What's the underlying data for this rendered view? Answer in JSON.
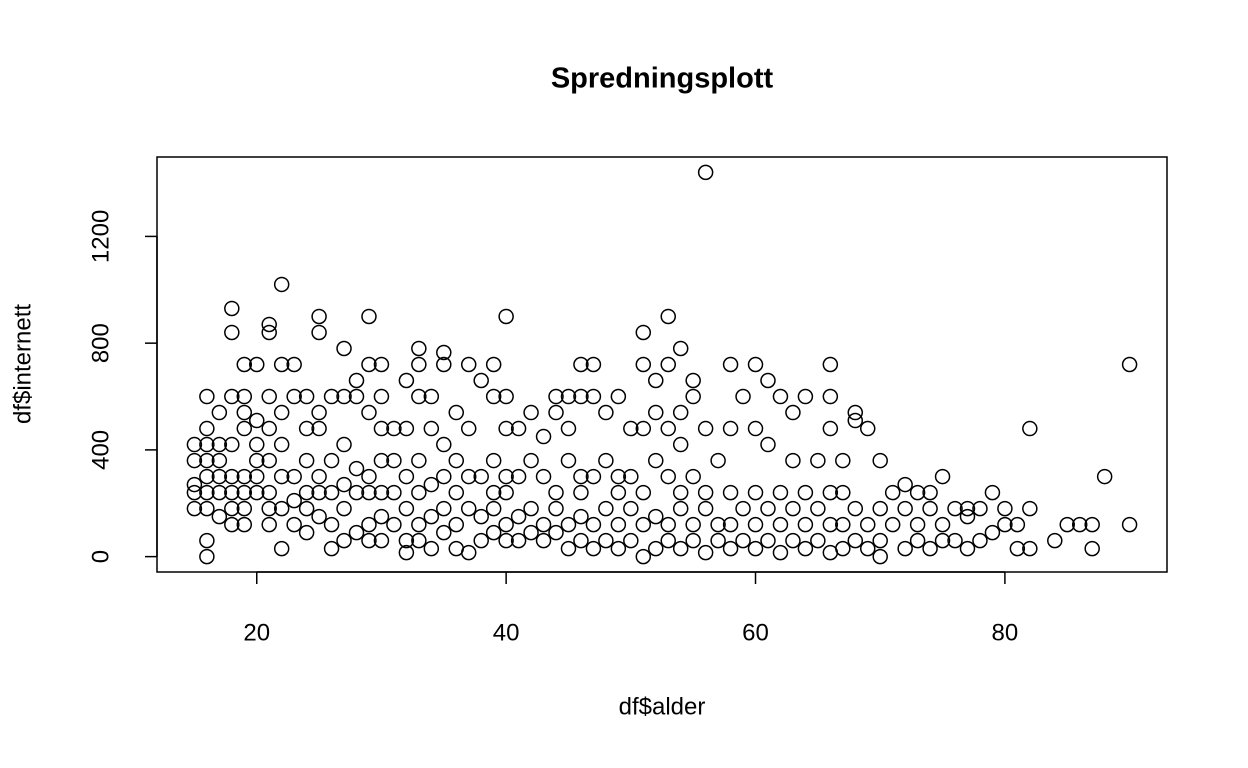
{
  "chart_data": {
    "type": "scatter",
    "title": "Spredningsplott",
    "x_label": "df$alder",
    "y_label": "df$internett",
    "xlim": [
      12,
      93
    ],
    "ylim": [
      -57.6,
      1497.6
    ],
    "xticks": [
      20,
      40,
      60,
      80
    ],
    "yticks": [
      0,
      400,
      800,
      1200
    ],
    "color": "#000000",
    "x": [
      15,
      15,
      15,
      15,
      15,
      16,
      16,
      16,
      16,
      16,
      16,
      16,
      16,
      16,
      17,
      17,
      17,
      17,
      17,
      17,
      18,
      18,
      18,
      18,
      18,
      18,
      18,
      18,
      19,
      19,
      19,
      19,
      19,
      19,
      19,
      19,
      20,
      20,
      20,
      20,
      20,
      20,
      21,
      21,
      21,
      21,
      21,
      21,
      21,
      21,
      22,
      22,
      22,
      22,
      22,
      22,
      22,
      23,
      23,
      23,
      23,
      23,
      24,
      24,
      24,
      24,
      24,
      24,
      25,
      25,
      25,
      25,
      25,
      25,
      25,
      26,
      26,
      26,
      26,
      26,
      27,
      27,
      27,
      27,
      27,
      27,
      28,
      28,
      28,
      28,
      28,
      29,
      29,
      29,
      29,
      29,
      29,
      29,
      30,
      30,
      30,
      30,
      30,
      30,
      30,
      31,
      31,
      31,
      31,
      32,
      32,
      32,
      32,
      32,
      32,
      33,
      33,
      33,
      33,
      33,
      33,
      33,
      34,
      34,
      34,
      34,
      34,
      35,
      35,
      35,
      35,
      35,
      35,
      36,
      36,
      36,
      36,
      36,
      37,
      37,
      37,
      37,
      37,
      38,
      38,
      38,
      38,
      39,
      39,
      39,
      39,
      39,
      39,
      40,
      40,
      40,
      40,
      40,
      40,
      40,
      41,
      41,
      41,
      41,
      42,
      42,
      42,
      42,
      43,
      43,
      43,
      43,
      44,
      44,
      44,
      44,
      44,
      45,
      45,
      45,
      45,
      45,
      46,
      46,
      46,
      46,
      46,
      46,
      47,
      47,
      47,
      47,
      47,
      48,
      48,
      48,
      48,
      49,
      49,
      49,
      49,
      49,
      50,
      50,
      50,
      50,
      51,
      51,
      51,
      51,
      51,
      51,
      52,
      52,
      52,
      52,
      52,
      53,
      53,
      53,
      53,
      53,
      53,
      54,
      54,
      54,
      54,
      54,
      54,
      55,
      55,
      55,
      55,
      55,
      56,
      56,
      56,
      56,
      56,
      57,
      57,
      57,
      58,
      58,
      58,
      58,
      58,
      59,
      59,
      59,
      60,
      60,
      60,
      60,
      60,
      61,
      61,
      61,
      61,
      62,
      62,
      62,
      62,
      63,
      63,
      63,
      63,
      64,
      64,
      64,
      64,
      65,
      65,
      65,
      66,
      66,
      66,
      66,
      66,
      66,
      67,
      67,
      67,
      67,
      68,
      68,
      68,
      68,
      69,
      69,
      69,
      70,
      70,
      70,
      70,
      71,
      71,
      72,
      72,
      72,
      73,
      73,
      73,
      74,
      74,
      74,
      75,
      75,
      75,
      76,
      76,
      77,
      77,
      77,
      78,
      78,
      79,
      79,
      80,
      80,
      81,
      81,
      82,
      82,
      82,
      84,
      85,
      86,
      87,
      87,
      88,
      90,
      90
    ],
    "values": [
      180,
      240,
      270,
      360,
      420,
      0,
      60,
      180,
      240,
      300,
      360,
      420,
      480,
      600,
      150,
      240,
      300,
      360,
      420,
      540,
      120,
      180,
      240,
      300,
      420,
      600,
      840,
      930,
      120,
      180,
      240,
      300,
      480,
      540,
      600,
      720,
      240,
      300,
      360,
      420,
      510,
      720,
      120,
      180,
      240,
      360,
      480,
      600,
      840,
      870,
      30,
      180,
      300,
      420,
      540,
      720,
      1020,
      120,
      210,
      300,
      600,
      720,
      90,
      180,
      240,
      360,
      480,
      600,
      150,
      240,
      300,
      480,
      540,
      840,
      900,
      30,
      120,
      240,
      360,
      600,
      60,
      180,
      270,
      420,
      600,
      780,
      90,
      240,
      330,
      600,
      660,
      60,
      120,
      240,
      300,
      540,
      720,
      900,
      60,
      150,
      240,
      360,
      480,
      600,
      720,
      120,
      240,
      360,
      480,
      15,
      60,
      180,
      300,
      480,
      660,
      60,
      120,
      240,
      360,
      600,
      720,
      780,
      30,
      150,
      270,
      480,
      600,
      90,
      180,
      300,
      420,
      720,
      765,
      30,
      120,
      240,
      360,
      540,
      15,
      180,
      300,
      480,
      720,
      60,
      150,
      300,
      660,
      90,
      180,
      240,
      360,
      600,
      720,
      60,
      120,
      240,
      300,
      480,
      600,
      900,
      60,
      150,
      300,
      480,
      90,
      180,
      360,
      540,
      60,
      120,
      300,
      450,
      90,
      180,
      240,
      540,
      600,
      30,
      120,
      360,
      480,
      600,
      60,
      150,
      240,
      300,
      600,
      720,
      30,
      120,
      300,
      600,
      720,
      60,
      180,
      360,
      540,
      30,
      120,
      240,
      300,
      600,
      60,
      180,
      300,
      480,
      0,
      120,
      240,
      480,
      720,
      840,
      30,
      150,
      360,
      540,
      660,
      60,
      120,
      300,
      480,
      720,
      900,
      30,
      180,
      240,
      420,
      540,
      780,
      60,
      120,
      300,
      600,
      660,
      15,
      180,
      240,
      480,
      1440,
      60,
      120,
      360,
      30,
      120,
      240,
      480,
      720,
      60,
      180,
      600,
      30,
      120,
      240,
      480,
      720,
      60,
      180,
      420,
      660,
      15,
      120,
      240,
      600,
      60,
      180,
      360,
      540,
      30,
      120,
      240,
      600,
      60,
      180,
      360,
      15,
      120,
      240,
      480,
      600,
      720,
      30,
      120,
      240,
      360,
      60,
      180,
      510,
      540,
      30,
      120,
      480,
      0,
      60,
      180,
      360,
      120,
      240,
      30,
      180,
      270,
      60,
      120,
      240,
      30,
      180,
      240,
      60,
      120,
      300,
      60,
      180,
      30,
      150,
      180,
      60,
      180,
      90,
      240,
      120,
      180,
      30,
      120,
      30,
      180,
      480,
      60,
      120,
      120,
      30,
      120,
      300,
      120,
      720
    ]
  }
}
